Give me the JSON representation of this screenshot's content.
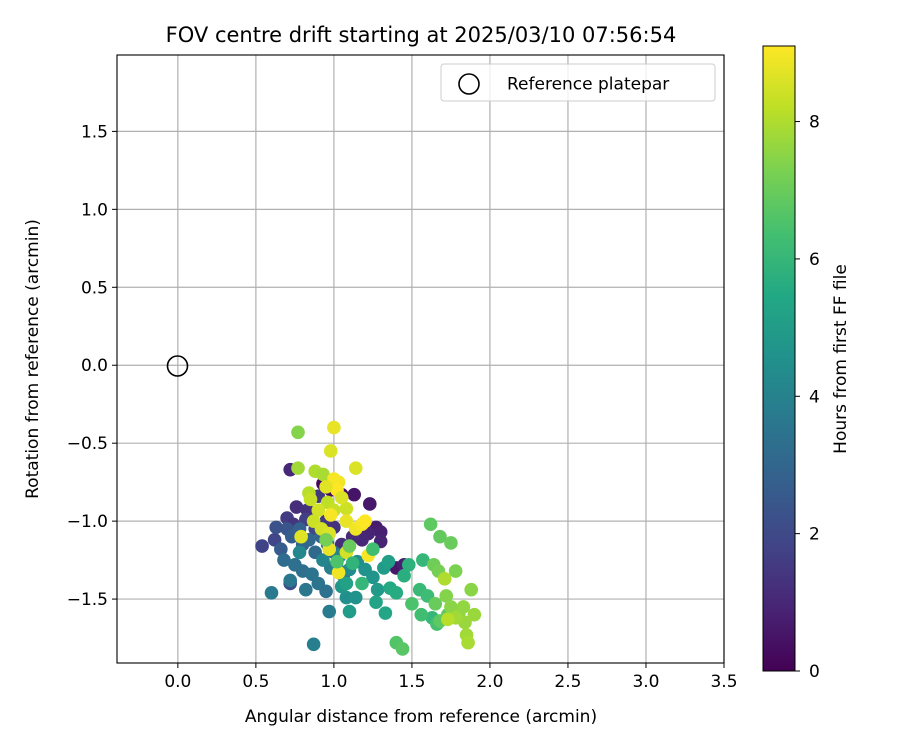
{
  "chart_data": {
    "type": "scatter",
    "title": "FOV centre drift starting at 2025/03/10 07:56:54",
    "xlabel": "Angular distance from reference (arcmin)",
    "ylabel": "Rotation from reference (arcmin)",
    "xlim": [
      -0.39,
      3.5
    ],
    "ylim": [
      -1.91,
      1.99
    ],
    "x_ticks": [
      0.0,
      0.5,
      1.0,
      1.5,
      2.0,
      2.5,
      3.0,
      3.5
    ],
    "x_tick_labels": [
      "0.0",
      "0.5",
      "1.0",
      "1.5",
      "2.0",
      "2.5",
      "3.0",
      "3.5"
    ],
    "y_ticks": [
      -1.5,
      -1.0,
      -0.5,
      0.0,
      0.5,
      1.0,
      1.5
    ],
    "y_tick_labels": [
      "−1.5",
      "−1.0",
      "−0.5",
      "0.0",
      "0.5",
      "1.0",
      "1.5"
    ],
    "grid": true,
    "legend": {
      "placement": "top-right",
      "entries": [
        "Reference platepar"
      ]
    },
    "reference_point": {
      "x": 0.0,
      "y": 0.0,
      "label": "Reference platepar"
    },
    "colorbar": {
      "label": "Hours from first FF file",
      "colormap": "viridis",
      "range": [
        0,
        9.1
      ],
      "ticks": [
        0,
        2,
        4,
        6,
        8
      ],
      "tick_labels": [
        "0",
        "2",
        "4",
        "6",
        "8"
      ]
    },
    "points": [
      [
        0.93,
        -0.76,
        0.2
      ],
      [
        0.98,
        -0.8,
        0.3
      ],
      [
        1.05,
        -0.83,
        0.4
      ],
      [
        1.13,
        -0.83,
        0.5
      ],
      [
        1.23,
        -0.89,
        0.6
      ],
      [
        1.27,
        -1.04,
        0.7
      ],
      [
        1.3,
        -1.07,
        0.8
      ],
      [
        1.22,
        -1.08,
        0.9
      ],
      [
        1.18,
        -1.12,
        1.0
      ],
      [
        1.12,
        -1.1,
        1.1
      ],
      [
        1.05,
        -1.15,
        1.2
      ],
      [
        1.3,
        -1.13,
        0.9
      ],
      [
        1.4,
        -1.3,
        0.6
      ],
      [
        1.45,
        -1.28,
        0.8
      ],
      [
        0.72,
        -0.67,
        1.0
      ],
      [
        0.76,
        -0.91,
        1.2
      ],
      [
        0.83,
        -0.93,
        1.3
      ],
      [
        0.9,
        -0.84,
        1.5
      ],
      [
        0.7,
        -0.98,
        1.6
      ],
      [
        0.62,
        -1.12,
        1.9
      ],
      [
        0.54,
        -1.16,
        1.8
      ],
      [
        0.74,
        -1.02,
        1.4
      ],
      [
        0.82,
        -0.99,
        1.7
      ],
      [
        0.88,
        -1.05,
        2.0
      ],
      [
        0.95,
        -1.0,
        1.5
      ],
      [
        1.0,
        -1.04,
        1.3
      ],
      [
        0.72,
        -1.4,
        2.2
      ],
      [
        0.63,
        -1.04,
        2.3
      ],
      [
        0.66,
        -1.18,
        2.6
      ],
      [
        0.7,
        -1.05,
        2.4
      ],
      [
        0.73,
        -1.1,
        2.7
      ],
      [
        0.78,
        -1.05,
        2.8
      ],
      [
        0.8,
        -1.15,
        2.9
      ],
      [
        0.84,
        -1.12,
        3.0
      ],
      [
        0.88,
        -1.2,
        3.1
      ],
      [
        0.92,
        -1.1,
        3.0
      ],
      [
        0.96,
        -1.15,
        3.2
      ],
      [
        1.0,
        -1.2,
        3.3
      ],
      [
        0.68,
        -1.25,
        3.2
      ],
      [
        0.75,
        -1.28,
        3.4
      ],
      [
        0.8,
        -1.32,
        3.3
      ],
      [
        0.86,
        -1.34,
        3.5
      ],
      [
        0.9,
        -1.4,
        3.5
      ],
      [
        0.95,
        -1.45,
        3.4
      ],
      [
        0.72,
        -1.38,
        3.6
      ],
      [
        0.82,
        -1.44,
        3.6
      ],
      [
        0.6,
        -1.46,
        3.7
      ],
      [
        0.97,
        -1.58,
        3.8
      ],
      [
        0.87,
        -1.79,
        3.9
      ],
      [
        1.02,
        -1.3,
        3.7
      ],
      [
        1.06,
        -1.35,
        3.8
      ],
      [
        0.98,
        -1.3,
        3.9
      ],
      [
        1.04,
        -1.22,
        4.0
      ],
      [
        0.93,
        -1.25,
        4.1
      ],
      [
        0.78,
        -1.2,
        4.2
      ],
      [
        1.1,
        -1.31,
        4.3
      ],
      [
        1.15,
        -1.26,
        4.4
      ],
      [
        1.2,
        -1.31,
        4.6
      ],
      [
        1.25,
        -1.36,
        4.7
      ],
      [
        1.08,
        -1.49,
        4.5
      ],
      [
        1.14,
        -1.49,
        4.6
      ],
      [
        1.05,
        -1.42,
        4.8
      ],
      [
        1.28,
        -1.44,
        4.9
      ],
      [
        1.32,
        -1.3,
        5.0
      ],
      [
        1.35,
        -1.26,
        5.1
      ],
      [
        1.1,
        -1.58,
        5.0
      ],
      [
        1.08,
        -1.4,
        5.2
      ],
      [
        1.27,
        -1.52,
        5.3
      ],
      [
        1.33,
        -1.59,
        5.4
      ],
      [
        1.36,
        -1.43,
        5.5
      ],
      [
        1.4,
        -1.46,
        5.6
      ],
      [
        1.45,
        -1.35,
        5.7
      ],
      [
        1.48,
        -1.28,
        5.8
      ],
      [
        1.57,
        -1.25,
        6.0
      ],
      [
        1.55,
        -1.44,
        6.1
      ],
      [
        1.6,
        -1.48,
        6.2
      ],
      [
        1.63,
        -1.62,
        6.0
      ],
      [
        1.56,
        -1.6,
        6.3
      ],
      [
        1.66,
        -1.66,
        6.4
      ],
      [
        1.5,
        -1.53,
        6.5
      ],
      [
        1.4,
        -1.78,
        6.6
      ],
      [
        1.44,
        -1.82,
        6.7
      ],
      [
        1.68,
        -1.64,
        6.8
      ],
      [
        1.73,
        -1.6,
        6.9
      ],
      [
        1.65,
        -1.53,
        7.0
      ],
      [
        1.62,
        -1.02,
        6.8
      ],
      [
        1.68,
        -1.1,
        6.9
      ],
      [
        1.75,
        -1.14,
        7.0
      ],
      [
        1.64,
        -1.28,
        7.1
      ],
      [
        1.67,
        -1.32,
        7.2
      ],
      [
        1.78,
        -1.32,
        7.3
      ],
      [
        1.72,
        -1.48,
        7.4
      ],
      [
        1.75,
        -1.55,
        7.5
      ],
      [
        1.8,
        -1.6,
        7.6
      ],
      [
        1.84,
        -1.65,
        7.7
      ],
      [
        1.85,
        -1.73,
        7.8
      ],
      [
        1.86,
        -1.78,
        7.9
      ],
      [
        1.88,
        -1.44,
        7.5
      ],
      [
        1.83,
        -1.55,
        7.6
      ],
      [
        1.9,
        -1.6,
        7.7
      ],
      [
        1.78,
        -1.62,
        7.8
      ],
      [
        1.71,
        -1.37,
        8.0
      ],
      [
        1.73,
        -1.63,
        8.1
      ],
      [
        0.77,
        -0.43,
        7.4
      ],
      [
        0.77,
        -0.66,
        7.8
      ],
      [
        0.84,
        -0.82,
        8.1
      ],
      [
        0.88,
        -0.68,
        8.0
      ],
      [
        0.93,
        -0.7,
        7.9
      ],
      [
        0.96,
        -0.88,
        8.2
      ],
      [
        1.0,
        -0.93,
        8.3
      ],
      [
        1.08,
        -0.92,
        8.4
      ],
      [
        0.85,
        -0.86,
        8.3
      ],
      [
        0.9,
        -0.93,
        8.5
      ],
      [
        1.14,
        -0.66,
        8.6
      ],
      [
        0.98,
        -0.55,
        8.6
      ],
      [
        1.0,
        -0.4,
        8.8
      ],
      [
        1.03,
        -0.75,
        8.9
      ],
      [
        1.0,
        -0.73,
        9.0
      ],
      [
        1.02,
        -0.8,
        9.1
      ],
      [
        0.95,
        -0.78,
        8.7
      ],
      [
        1.05,
        -0.85,
        8.6
      ],
      [
        0.87,
        -1.0,
        8.4
      ],
      [
        0.92,
        -1.05,
        8.5
      ],
      [
        0.97,
        -1.08,
        8.6
      ],
      [
        0.98,
        -0.96,
        9.0
      ],
      [
        1.08,
        -1.0,
        8.8
      ],
      [
        1.14,
        -1.05,
        8.9
      ],
      [
        1.18,
        -1.02,
        9.0
      ],
      [
        1.2,
        -1.0,
        9.1
      ],
      [
        0.79,
        -1.1,
        8.7
      ],
      [
        0.97,
        -1.18,
        8.8
      ],
      [
        1.08,
        -1.2,
        8.5
      ],
      [
        1.22,
        -1.22,
        9.0
      ],
      [
        1.03,
        -1.33,
        8.9
      ],
      [
        0.95,
        -1.12,
        7.2
      ],
      [
        1.1,
        -1.16,
        7.0
      ],
      [
        1.02,
        -1.26,
        6.5
      ],
      [
        1.18,
        -1.4,
        6.0
      ],
      [
        1.25,
        -1.18,
        6.3
      ],
      [
        1.12,
        -1.27,
        5.9
      ]
    ]
  }
}
